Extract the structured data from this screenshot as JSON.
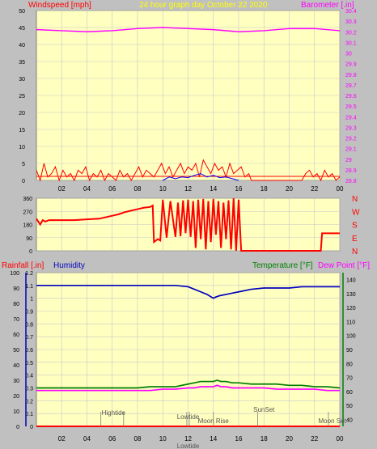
{
  "colors": {
    "background": "#c0c0c0",
    "plot_bg": "#ffffc0",
    "grid": "#c8c8c8",
    "wind": "#ff0000",
    "gust": "#0000ff",
    "baro": "#ff00ff",
    "title": "#ffff00",
    "wdir": "#ff0000",
    "rain": "#ff0000",
    "humidity": "#0000c0",
    "temp": "#008000",
    "dew": "#ff00ff",
    "tide": "#808080"
  },
  "chart_data": [
    {
      "type": "line",
      "title": "24 hour graph day   October 22 2020",
      "ylabel_left": "Windspeed [mph]",
      "ylabel_right": "Barometer [.in]",
      "x_ticks": [
        "02",
        "04",
        "06",
        "08",
        "10",
        "12",
        "14",
        "16",
        "18",
        "20",
        "22",
        "00"
      ],
      "left_ticks": [
        "0",
        "5",
        "10",
        "15",
        "20",
        "25",
        "30",
        "35",
        "40",
        "45",
        "50"
      ],
      "right_ticks": [
        "28.8",
        "28.9",
        "29",
        "29.1",
        "29.2",
        "29.3",
        "29.4",
        "29.5",
        "29.6",
        "29.7",
        "29.8",
        "29.9",
        "30",
        "30.1",
        "30.2",
        "30.3",
        "30.4"
      ],
      "ylim_left": [
        0,
        50
      ],
      "ylim_right": [
        28.8,
        30.4
      ],
      "xlim_hours": [
        0,
        24
      ],
      "series": [
        {
          "name": "Windspeed",
          "color": "#ff0000",
          "x": [
            0,
            0.3,
            0.6,
            0.9,
            1.2,
            1.5,
            1.8,
            2.1,
            2.4,
            2.7,
            3,
            3.3,
            3.6,
            3.9,
            4.2,
            4.5,
            4.8,
            5.1,
            5.4,
            5.7,
            6,
            6.3,
            6.6,
            6.9,
            7.2,
            7.5,
            7.8,
            8.1,
            8.4,
            8.7,
            9,
            9.3,
            9.6,
            9.9,
            10.2,
            10.5,
            10.8,
            11.1,
            11.4,
            11.7,
            12,
            12.3,
            12.6,
            12.9,
            13.2,
            13.5,
            13.8,
            14.1,
            14.4,
            14.7,
            15,
            15.3,
            15.6,
            15.9,
            16.2,
            16.5,
            16.8,
            17,
            18,
            19,
            20,
            21,
            21.3,
            21.6,
            21.9,
            22.2,
            22.5,
            22.8,
            23.1,
            23.4,
            23.7,
            24
          ],
          "y": [
            3,
            0,
            5,
            1,
            2,
            4,
            0,
            3,
            1,
            2,
            0,
            3,
            2,
            4,
            0,
            2,
            1,
            3,
            0,
            2,
            1,
            0,
            3,
            1,
            2,
            0,
            2,
            4,
            1,
            3,
            2,
            1,
            3,
            5,
            2,
            4,
            1,
            3,
            5,
            2,
            4,
            3,
            5,
            1,
            6,
            4,
            2,
            5,
            3,
            4,
            1,
            5,
            2,
            3,
            4,
            1,
            2,
            0,
            0,
            0,
            0,
            0,
            2,
            3,
            1,
            2,
            0,
            3,
            1,
            2,
            0,
            1
          ]
        },
        {
          "name": "Gust",
          "color": "#0000ff",
          "x": [
            10,
            10.5,
            11,
            11.5,
            12,
            12.5,
            13,
            13.5,
            14,
            14.5,
            15,
            15.5,
            16
          ],
          "y": [
            0,
            1,
            0.5,
            1,
            0.8,
            1.5,
            2,
            1,
            1.5,
            0.8,
            1,
            0.5,
            0
          ]
        },
        {
          "name": "Barometer",
          "color": "#ff00ff",
          "x": [
            0,
            2,
            4,
            6,
            8,
            10,
            12,
            14,
            16,
            18,
            20,
            22,
            24
          ],
          "y": [
            30.22,
            30.21,
            30.2,
            30.21,
            30.23,
            30.24,
            30.23,
            30.22,
            30.2,
            30.21,
            30.23,
            30.23,
            30.21
          ]
        }
      ]
    },
    {
      "type": "line",
      "ylabel_left": "",
      "left_ticks": [
        "0",
        "90",
        "180",
        "270",
        "360"
      ],
      "ylim_left": [
        0,
        360
      ],
      "right_labels": [
        "N",
        "W",
        "S",
        "E",
        "N"
      ],
      "series": [
        {
          "name": "Wind direction",
          "color": "#ff0000",
          "x": [
            0,
            0.3,
            0.5,
            0.7,
            1,
            2,
            3,
            4,
            5,
            6,
            6.5,
            7,
            7.5,
            8,
            8.5,
            9,
            9.2,
            9.3,
            9.6,
            9.8,
            10,
            10.3,
            10.6,
            11,
            11.2,
            11.4,
            11.6,
            11.8,
            12,
            12.2,
            12.4,
            12.6,
            12.8,
            13,
            13.2,
            13.4,
            13.6,
            13.8,
            14,
            14.2,
            14.4,
            14.6,
            14.8,
            15,
            15.2,
            15.4,
            15.6,
            15.8,
            16,
            16.2,
            22.5,
            22.6,
            24
          ],
          "y": [
            220,
            180,
            210,
            200,
            210,
            210,
            210,
            215,
            220,
            240,
            250,
            265,
            275,
            285,
            295,
            300,
            310,
            60,
            80,
            70,
            350,
            90,
            340,
            95,
            330,
            100,
            345,
            120,
            350,
            95,
            340,
            20,
            350,
            80,
            355,
            10,
            340,
            60,
            355,
            110,
            340,
            20,
            330,
            80,
            345,
            10,
            360,
            0,
            350,
            0,
            0,
            120,
            120
          ]
        }
      ]
    },
    {
      "type": "line",
      "ylabel_left": "Rainfall [.in]",
      "ylabel_humidity": "Humidity",
      "ylabel_right": "Temperature [°F]",
      "ylabel_right2": "Dew Point [°F]",
      "left_ticks": [
        "0",
        "0.1",
        "0.2",
        "0.3",
        "0.4",
        "0.5",
        "0.6",
        "0.7",
        "0.8",
        "0.9",
        "1",
        "1.1",
        "1.2"
      ],
      "humidity_ticks": [
        "0",
        "10",
        "20",
        "30",
        "40",
        "50",
        "60",
        "70",
        "80",
        "90",
        "100"
      ],
      "right_ticks": [
        "40",
        "50",
        "60",
        "70",
        "80",
        "90",
        "100",
        "110",
        "120",
        "130",
        "140"
      ],
      "ylim_left": [
        0,
        1.2
      ],
      "ylim_right": [
        35,
        145
      ],
      "x_ticks": [
        "02",
        "04",
        "06",
        "08",
        "10",
        "12",
        "14",
        "16",
        "18",
        "20",
        "22",
        "00"
      ],
      "annotations": [
        "Hightide",
        "Lowtide",
        "Lowtide",
        "Moon Rise",
        "SunSet",
        "Moon Set"
      ],
      "series": [
        {
          "name": "Humidity",
          "color": "#0000c0",
          "x": [
            0,
            2,
            4,
            6,
            8,
            9,
            10,
            11,
            12,
            12.5,
            13,
            13.5,
            14,
            14.2,
            14.5,
            15,
            15.5,
            16,
            17,
            18,
            19,
            20,
            21,
            22,
            23,
            24
          ],
          "y": [
            1.1,
            1.1,
            1.1,
            1.1,
            1.1,
            1.1,
            1.1,
            1.1,
            1.09,
            1.07,
            1.05,
            1.03,
            1.0,
            1.01,
            1.02,
            1.03,
            1.04,
            1.05,
            1.07,
            1.08,
            1.08,
            1.08,
            1.09,
            1.09,
            1.09,
            1.09
          ]
        },
        {
          "name": "Temperature",
          "color": "#008000",
          "x": [
            0,
            2,
            4,
            6,
            8,
            9,
            10,
            11,
            12,
            12.5,
            13,
            13.5,
            14,
            14.3,
            14.6,
            15,
            15.5,
            16,
            17,
            18,
            19,
            20,
            21,
            22,
            23,
            24
          ],
          "y": [
            0.3,
            0.3,
            0.3,
            0.3,
            0.3,
            0.31,
            0.31,
            0.31,
            0.33,
            0.34,
            0.35,
            0.35,
            0.35,
            0.36,
            0.35,
            0.35,
            0.34,
            0.34,
            0.33,
            0.33,
            0.33,
            0.32,
            0.32,
            0.31,
            0.31,
            0.3
          ]
        },
        {
          "name": "Dew Point",
          "color": "#ff00ff",
          "x": [
            0,
            2,
            4,
            6,
            8,
            9,
            10,
            11,
            12,
            12.5,
            13,
            13.5,
            14,
            14.3,
            14.6,
            15,
            15.5,
            16,
            17,
            18,
            19,
            20,
            21,
            22,
            23,
            24
          ],
          "y": [
            0.28,
            0.28,
            0.28,
            0.28,
            0.28,
            0.28,
            0.29,
            0.29,
            0.3,
            0.3,
            0.31,
            0.31,
            0.31,
            0.32,
            0.31,
            0.31,
            0.3,
            0.3,
            0.3,
            0.3,
            0.29,
            0.29,
            0.29,
            0.29,
            0.28,
            0.28
          ]
        },
        {
          "name": "Rainfall",
          "color": "#ff0000",
          "x": [
            0,
            24
          ],
          "y": [
            0,
            0
          ]
        }
      ]
    }
  ]
}
